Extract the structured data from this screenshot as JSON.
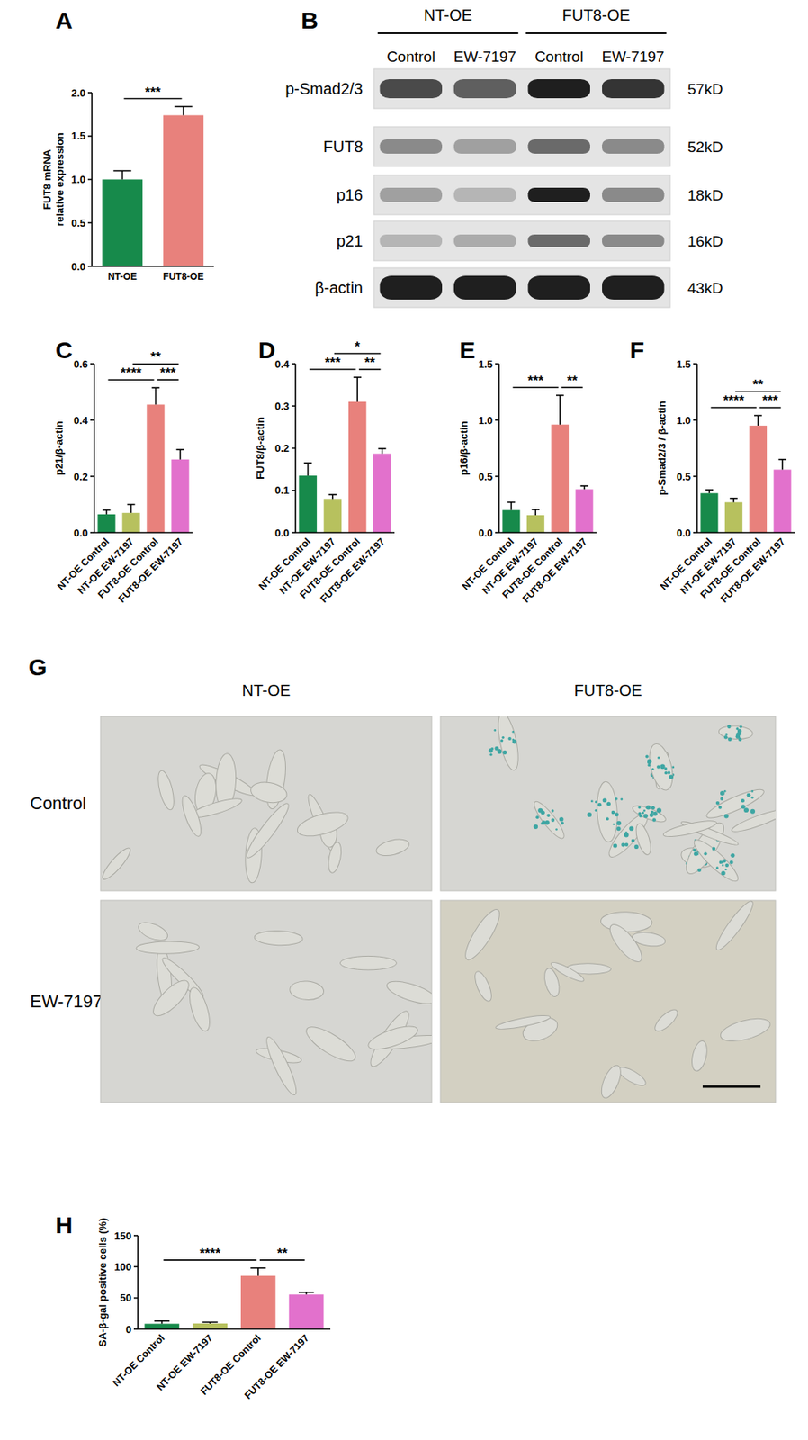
{
  "chart_data": [
    {
      "panel": "A",
      "type": "bar",
      "categories": [
        "NT-OE",
        "FUT8-OE"
      ],
      "values": [
        1.0,
        1.74
      ],
      "errors": [
        0.1,
        0.1
      ],
      "colors": [
        "#178a4b",
        "#e8817c"
      ],
      "y_label": [
        "FUT8 mRNA",
        "relative expression"
      ],
      "ylim": [
        0,
        2
      ],
      "yticks": [
        {
          "value": 0,
          "label": "0.0"
        },
        {
          "value": 0.5,
          "label": "0.5"
        },
        {
          "value": 1,
          "label": "1.0"
        },
        {
          "value": 1.5,
          "label": "1.5"
        },
        {
          "value": 2,
          "label": "2.0"
        }
      ],
      "annotations": [
        {
          "from": 0,
          "to": 1,
          "text": "***"
        }
      ]
    },
    {
      "panel": "C",
      "type": "bar",
      "categories": [
        "NT-OE Control",
        "NT-OE EW-7197",
        "FUT8-OE Control",
        "FUT8-OE EW-7197"
      ],
      "values": [
        0.065,
        0.07,
        0.455,
        0.26
      ],
      "errors": [
        0.015,
        0.03,
        0.06,
        0.035
      ],
      "colors": [
        "#178a4b",
        "#b7c15e",
        "#e8817c",
        "#e271cc"
      ],
      "y_label": "p21/β-actin",
      "ylim": [
        0,
        0.6
      ],
      "yticks": [
        {
          "value": 0,
          "label": "0.0"
        },
        {
          "value": 0.2,
          "label": "0.2"
        },
        {
          "value": 0.4,
          "label": "0.4"
        },
        {
          "value": 0.6,
          "label": "0.6"
        }
      ],
      "annotations": [
        {
          "from": 0,
          "to": 2,
          "text": "****"
        },
        {
          "from": 2,
          "to": 3,
          "text": "***"
        },
        {
          "from": 1,
          "to": 3,
          "text": "**"
        }
      ]
    },
    {
      "panel": "D",
      "type": "bar",
      "categories": [
        "NT-OE Control",
        "NT-OE EW-7197",
        "FUT8-OE Control",
        "FUT8-OE EW-7197"
      ],
      "values": [
        0.135,
        0.08,
        0.31,
        0.187
      ],
      "errors": [
        0.03,
        0.01,
        0.058,
        0.012
      ],
      "colors": [
        "#178a4b",
        "#b7c15e",
        "#e8817c",
        "#e271cc"
      ],
      "y_label": "FUT8/β-actin",
      "ylim": [
        0,
        0.4
      ],
      "yticks": [
        {
          "value": 0,
          "label": "0.0"
        },
        {
          "value": 0.1,
          "label": "0.1"
        },
        {
          "value": 0.2,
          "label": "0.2"
        },
        {
          "value": 0.3,
          "label": "0.3"
        },
        {
          "value": 0.4,
          "label": "0.4"
        }
      ],
      "annotations": [
        {
          "from": 0,
          "to": 2,
          "text": "***"
        },
        {
          "from": 2,
          "to": 3,
          "text": "**"
        },
        {
          "from": 1,
          "to": 3,
          "text": "*"
        }
      ]
    },
    {
      "panel": "E",
      "type": "bar",
      "categories": [
        "NT-OE Control",
        "NT-OE EW-7197",
        "FUT8-OE Control",
        "FUT8-OE EW-7197"
      ],
      "values": [
        0.2,
        0.155,
        0.96,
        0.385
      ],
      "errors": [
        0.07,
        0.05,
        0.26,
        0.03
      ],
      "colors": [
        "#178a4b",
        "#b7c15e",
        "#e8817c",
        "#e271cc"
      ],
      "y_label": "p16/β-actin",
      "ylim": [
        0,
        1.5
      ],
      "yticks": [
        {
          "value": 0,
          "label": "0.0"
        },
        {
          "value": 0.5,
          "label": "0.5"
        },
        {
          "value": 1,
          "label": "1.0"
        },
        {
          "value": 1.5,
          "label": "1.5"
        }
      ],
      "annotations": [
        {
          "from": 0,
          "to": 2,
          "text": "***"
        },
        {
          "from": 2,
          "to": 3,
          "text": "**"
        }
      ]
    },
    {
      "panel": "F",
      "type": "bar",
      "categories": [
        "NT-OE Control",
        "NT-OE EW-7197",
        "FUT8-OE Control",
        "FUT8-OE EW-7197"
      ],
      "values": [
        0.35,
        0.27,
        0.95,
        0.56
      ],
      "errors": [
        0.03,
        0.035,
        0.09,
        0.09
      ],
      "colors": [
        "#178a4b",
        "#b7c15e",
        "#e8817c",
        "#e271cc"
      ],
      "y_label": "p-Smad2/3 / β-actin",
      "ylim": [
        0,
        1.5
      ],
      "yticks": [
        {
          "value": 0,
          "label": "0.0"
        },
        {
          "value": 0.5,
          "label": "0.5"
        },
        {
          "value": 1,
          "label": "1.0"
        },
        {
          "value": 1.5,
          "label": "1.5"
        }
      ],
      "annotations": [
        {
          "from": 0,
          "to": 2,
          "text": "****"
        },
        {
          "from": 2,
          "to": 3,
          "text": "***"
        },
        {
          "from": 1,
          "to": 3,
          "text": "**"
        }
      ]
    },
    {
      "panel": "H",
      "type": "bar",
      "categories": [
        "NT-OE Control",
        "NT-OE EW-7197",
        "FUT8-OE Control",
        "FUT8-OE EW-7197"
      ],
      "values": [
        8.5,
        9,
        85.5,
        55.5
      ],
      "errors": [
        4.5,
        2,
        12.5,
        3.5
      ],
      "colors": [
        "#178a4b",
        "#b7c15e",
        "#e8817c",
        "#e271cc"
      ],
      "y_label": "SA-β-gal positive cells (%)",
      "ylim": [
        0,
        150
      ],
      "yticks": [
        0,
        50,
        100,
        150
      ],
      "annotations": [
        {
          "from": 0,
          "to": 2,
          "text": "****"
        },
        {
          "from": 2,
          "to": 3,
          "text": "**"
        }
      ]
    }
  ],
  "blot": {
    "panel": "B",
    "groups": [
      "NT-OE",
      "FUT8-OE"
    ],
    "lanes": [
      "Control",
      "EW-7197",
      "Control",
      "EW-7197"
    ],
    "rows": [
      {
        "protein": "p-Smad2/3",
        "size": "57kD",
        "intensity": [
          0.75,
          0.65,
          0.95,
          0.85
        ]
      },
      {
        "protein": "FUT8",
        "size": "52kD",
        "intensity": [
          0.45,
          0.35,
          0.6,
          0.45
        ]
      },
      {
        "protein": "p16",
        "size": "18kD",
        "intensity": [
          0.35,
          0.25,
          0.95,
          0.45
        ]
      },
      {
        "protein": "p21",
        "size": "16kD",
        "intensity": [
          0.25,
          0.3,
          0.6,
          0.45
        ]
      },
      {
        "protein": "β-actin",
        "size": "43kD",
        "intensity": [
          0.95,
          0.95,
          0.95,
          0.95
        ]
      }
    ]
  },
  "micrographs": {
    "panel": "G",
    "columns": [
      "NT-OE",
      "FUT8-OE"
    ],
    "rows": [
      "Control",
      "EW-7197"
    ],
    "stained": [
      [
        false,
        true
      ],
      [
        false,
        false
      ]
    ]
  }
}
